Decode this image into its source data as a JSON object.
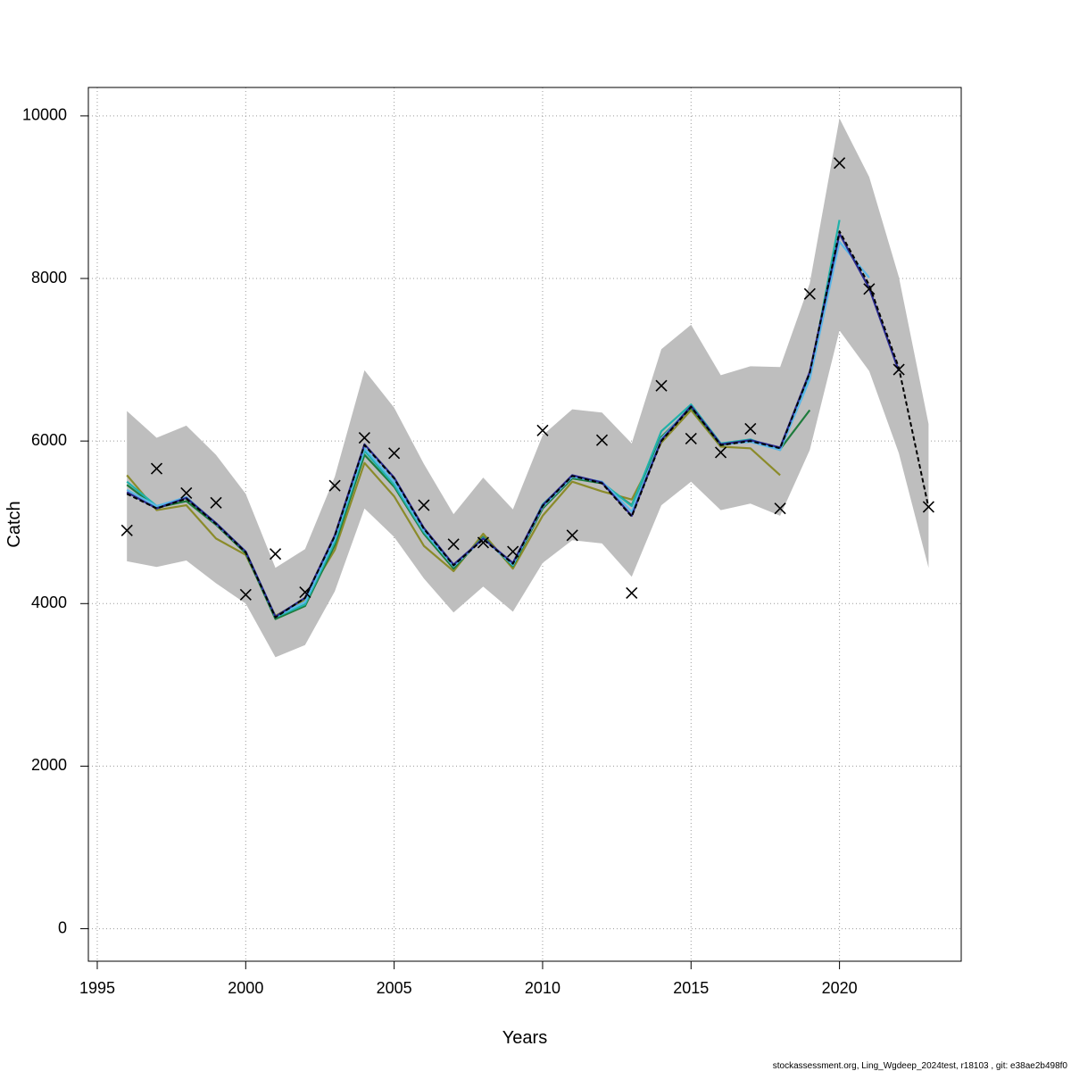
{
  "chart_data": {
    "type": "line",
    "xlabel": "Years",
    "ylabel": "Catch",
    "xlim": [
      1994.7,
      2024.1
    ],
    "ylim": [
      -400,
      10350
    ],
    "x_ticks": [
      1995,
      2000,
      2005,
      2010,
      2015,
      2020
    ],
    "y_ticks": [
      0,
      2000,
      4000,
      6000,
      8000,
      10000
    ],
    "grid": true,
    "footer": "stockassessment.org, Ling_Wgdeep_2024test, r18103 , git: e38ae2b498f0",
    "years": [
      1996,
      1997,
      1998,
      1999,
      2000,
      2001,
      2002,
      2003,
      2004,
      2005,
      2006,
      2007,
      2008,
      2009,
      2010,
      2011,
      2012,
      2013,
      2014,
      2015,
      2016,
      2017,
      2018,
      2019,
      2020,
      2021,
      2022,
      2023
    ],
    "ci_band": {
      "color": "#bebebe",
      "lower": [
        4520,
        4450,
        4530,
        4250,
        4000,
        3340,
        3490,
        4150,
        5170,
        4820,
        4310,
        3890,
        4210,
        3900,
        4500,
        4780,
        4740,
        4330,
        5210,
        5500,
        5150,
        5230,
        5080,
        5890,
        7360,
        6860,
        5850,
        4440
      ],
      "upper": [
        6370,
        6040,
        6190,
        5830,
        5350,
        4440,
        4670,
        5560,
        6870,
        6410,
        5720,
        5100,
        5550,
        5160,
        6070,
        6390,
        6350,
        5970,
        7130,
        7430,
        6810,
        6920,
        6910,
        7940,
        9970,
        9250,
        8020,
        6210
      ]
    },
    "series": [
      {
        "color": "#8b8b2a",
        "values": [
          5580,
          5150,
          5210,
          4800,
          4600,
          3850,
          4050,
          4660,
          5730,
          5320,
          4710,
          4400,
          4860,
          4430,
          5080,
          5500,
          5380,
          5280,
          5980,
          6380,
          5930,
          5910,
          5580,
          null,
          null,
          null,
          null,
          null
        ]
      },
      {
        "color": "#1e7b3c",
        "values": [
          5460,
          5180,
          5260,
          4970,
          4620,
          3810,
          3970,
          4720,
          5830,
          5440,
          4860,
          4430,
          4820,
          4460,
          5170,
          5540,
          5480,
          5210,
          6050,
          6410,
          5950,
          6000,
          5900,
          6380,
          null,
          null,
          null,
          null
        ]
      },
      {
        "color": "#20b2aa",
        "values": [
          5500,
          5200,
          5300,
          4990,
          4640,
          3830,
          3990,
          4760,
          5880,
          5460,
          4880,
          4460,
          4810,
          4470,
          5220,
          5560,
          5490,
          5200,
          6120,
          6450,
          5970,
          6020,
          5890,
          6780,
          8720,
          null,
          null,
          null
        ]
      },
      {
        "color": "#5bb7e8",
        "values": [
          5400,
          5200,
          5310,
          4980,
          4640,
          3840,
          4020,
          4800,
          5910,
          5500,
          4900,
          4460,
          4800,
          4480,
          5190,
          5560,
          5500,
          5130,
          6030,
          6430,
          5960,
          5990,
          5890,
          6760,
          8450,
          8010,
          null,
          null
        ]
      },
      {
        "color": "#2a2a90",
        "values": [
          5370,
          5170,
          5300,
          4990,
          4640,
          3840,
          4070,
          4840,
          5960,
          5550,
          4930,
          4480,
          4800,
          4500,
          5210,
          5580,
          5490,
          5080,
          6010,
          6430,
          5960,
          6010,
          5920,
          6850,
          8550,
          7880,
          6860,
          null
        ]
      },
      {
        "color": "#000000",
        "dashed": true,
        "values": [
          5350,
          5170,
          5290,
          4980,
          4630,
          3830,
          4070,
          4830,
          5950,
          5540,
          4920,
          4470,
          4790,
          4490,
          5200,
          5570,
          5480,
          5070,
          6000,
          6420,
          5950,
          6000,
          5910,
          6840,
          8580,
          7920,
          6900,
          5180
        ]
      }
    ],
    "observed": {
      "marker": "x",
      "values": [
        4900,
        5660,
        5360,
        5240,
        4110,
        4610,
        4140,
        5450,
        6040,
        5850,
        5210,
        4730,
        4750,
        4640,
        6130,
        4840,
        6010,
        4130,
        6680,
        6030,
        5860,
        6150,
        5170,
        7810,
        9420,
        7870,
        6880,
        5190
      ]
    }
  }
}
